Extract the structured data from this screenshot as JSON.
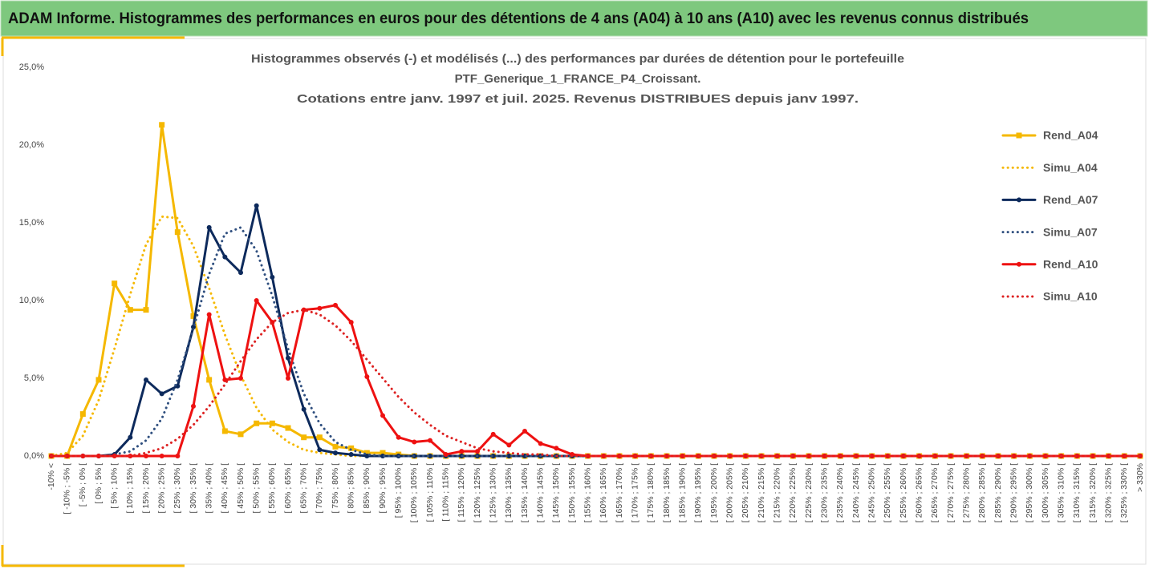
{
  "header": {
    "title": "ADAM Informe. Histogrammes des performances en euros pour des détentions de 4 ans (A04) à 10 ans (A10) avec les revenus connus distribués"
  },
  "chart_data": {
    "type": "line",
    "title": [
      "Histogrammes observés (-) et modélisés (...) des performances par durées de détention pour le portefeuille",
      "PTF_Generique_1_FRANCE_P4_Croissant.",
      "Cotations entre janv. 1997 et juil. 2025. Revenus DISTRIBUES depuis janv 1997."
    ],
    "categories": [
      "-10% <",
      "[ -10% ; -5% [",
      "[ -5% ; 0% [",
      "[ 0% ; 5% [",
      "[ 5% ; 10% [",
      "[ 10% ; 15% [",
      "[ 15% ; 20% [",
      "[ 20% ; 25% [",
      "[ 25% ; 30% [",
      "[ 30% ; 35% [",
      "[ 35% ; 40% [",
      "[ 40% ; 45% [",
      "[ 45% ; 50% [",
      "[ 50% ; 55% [",
      "[ 55% ; 60% [",
      "[ 60% ; 65% [",
      "[ 65% ; 70% [",
      "[ 70% ; 75% [",
      "[ 75% ; 80% [",
      "[ 80% ; 85% [",
      "[ 85% ; 90% [",
      "[ 90% ; 95% [",
      "[ 95% ; 100% [",
      "[ 100% ; 105% [",
      "[ 105% ; 110% [",
      "[ 110% ; 115% [",
      "[ 115% ; 120% [",
      "[ 120% ; 125% [",
      "[ 125% ; 130% [",
      "[ 130% ; 135% [",
      "[ 135% ; 140% [",
      "[ 140% ; 145% [",
      "[ 145% ; 150% [",
      "[ 150% ; 155% [",
      "[ 155% ; 160% [",
      "[ 160% ; 165% [",
      "[ 165% ; 170% [",
      "[ 170% ; 175% [",
      "[ 175% ; 180% [",
      "[ 180% ; 185% [",
      "[ 185% ; 190% [",
      "[ 190% ; 195% [",
      "[ 195% ; 200% [",
      "[ 200% ; 205% [",
      "[ 205% ; 210% [",
      "[ 210% ; 215% [",
      "[ 215% ; 220% [",
      "[ 220% ; 225% [",
      "[ 225% ; 230% [",
      "[ 230% ; 235% [",
      "[ 235% ; 240% [",
      "[ 240% ; 245% [",
      "[ 245% ; 250% [",
      "[ 250% ; 255% [",
      "[ 255% ; 260% [",
      "[ 260% ; 265% [",
      "[ 265% ; 270% [",
      "[ 270% ; 275% [",
      "[ 275% ; 280% [",
      "[ 280% ; 285% [",
      "[ 285% ; 290% [",
      "[ 290% ; 295% [",
      "[ 295% ; 300% [",
      "[ 300% ; 305% [",
      "[ 305% ; 310% [",
      "[ 310% ; 315% [",
      "[ 315% ; 320% [",
      "[ 320% ; 325% [",
      "[ 325% ; 330% [",
      "> 330%"
    ],
    "series": [
      {
        "name": "Rend_A04",
        "color": "#f5b800",
        "style": "solid",
        "marker": "square",
        "values": [
          0,
          0,
          2.7,
          4.9,
          11.1,
          9.4,
          9.4,
          21.3,
          14.4,
          9.0,
          4.9,
          1.6,
          1.4,
          2.1,
          2.1,
          1.8,
          1.2,
          1.2,
          0.6,
          0.5,
          0.2,
          0.2,
          0.1,
          0,
          0,
          0,
          0,
          0,
          0,
          0,
          0,
          0,
          0,
          0,
          0,
          0,
          0,
          0,
          0,
          0,
          0,
          0,
          0,
          0,
          0,
          0,
          0,
          0,
          0,
          0,
          0,
          0,
          0,
          0,
          0,
          0,
          0,
          0,
          0,
          0,
          0,
          0,
          0,
          0,
          0,
          0,
          0,
          0,
          0,
          0
        ]
      },
      {
        "name": "Simu_A04",
        "color": "#f5b800",
        "style": "dotted",
        "values": [
          0,
          0.2,
          1.3,
          3.6,
          6.9,
          10.4,
          13.6,
          15.4,
          15.3,
          13.5,
          10.8,
          7.8,
          5.2,
          3.1,
          1.7,
          0.9,
          0.4,
          0.2,
          0.1,
          0,
          0,
          0,
          0,
          0,
          0,
          0,
          0,
          0,
          0,
          0,
          0,
          0,
          0,
          0,
          0,
          0,
          0,
          0,
          0,
          0,
          0,
          0,
          0,
          0,
          0,
          0,
          0,
          0,
          0,
          0,
          0,
          0,
          0,
          0,
          0,
          0,
          0,
          0,
          0,
          0,
          0,
          0,
          0,
          0,
          0,
          0,
          0,
          0,
          0,
          0
        ]
      },
      {
        "name": "Rend_A07",
        "color": "#0d2a5c",
        "style": "solid",
        "marker": "circle",
        "values": [
          0,
          0,
          0,
          0,
          0.1,
          1.2,
          4.9,
          4.0,
          4.5,
          8.3,
          14.7,
          12.8,
          11.8,
          16.1,
          11.5,
          6.3,
          3.0,
          0.4,
          0.2,
          0.1,
          0,
          0,
          0,
          0,
          0,
          0,
          0,
          0,
          0,
          0,
          0,
          0,
          0,
          0,
          0,
          0,
          0,
          0,
          0,
          0,
          0,
          0,
          0,
          0,
          0,
          0,
          0,
          0,
          0,
          0,
          0,
          0,
          0,
          0,
          0,
          0,
          0,
          0,
          0,
          0,
          0,
          0,
          0,
          0,
          0,
          0,
          0,
          0,
          0,
          0
        ]
      },
      {
        "name": "Simu_A07",
        "color": "#2f4f7f",
        "style": "dotted",
        "values": [
          0,
          0,
          0,
          0,
          0.1,
          0.3,
          1.0,
          2.4,
          4.9,
          8.2,
          11.7,
          14.3,
          14.7,
          13.2,
          10.3,
          6.9,
          4.0,
          2.1,
          0.9,
          0.4,
          0.1,
          0,
          0,
          0,
          0,
          0,
          0,
          0,
          0,
          0,
          0,
          0,
          0,
          0,
          0,
          0,
          0,
          0,
          0,
          0,
          0,
          0,
          0,
          0,
          0,
          0,
          0,
          0,
          0,
          0,
          0,
          0,
          0,
          0,
          0,
          0,
          0,
          0,
          0,
          0,
          0,
          0,
          0,
          0,
          0,
          0,
          0,
          0,
          0,
          0
        ]
      },
      {
        "name": "Rend_A10",
        "color": "#ee1111",
        "style": "solid",
        "marker": "circle",
        "values": [
          0,
          0,
          0,
          0,
          0,
          0,
          0,
          0,
          0,
          3.2,
          9.1,
          4.9,
          5.0,
          10.0,
          8.6,
          5.0,
          9.4,
          9.5,
          9.7,
          8.6,
          5.1,
          2.6,
          1.2,
          0.9,
          1.0,
          0.1,
          0.3,
          0.3,
          1.4,
          0.7,
          1.6,
          0.8,
          0.5,
          0.1,
          0,
          0,
          0,
          0,
          0,
          0,
          0,
          0,
          0,
          0,
          0,
          0,
          0,
          0,
          0,
          0,
          0,
          0,
          0,
          0,
          0,
          0,
          0,
          0,
          0,
          0,
          0,
          0,
          0,
          0,
          0,
          0,
          0,
          0,
          0,
          0
        ]
      },
      {
        "name": "Simu_A10",
        "color": "#dd2222",
        "style": "dotted",
        "values": [
          0,
          0,
          0,
          0,
          0,
          0,
          0.2,
          0.5,
          1.1,
          2.0,
          3.2,
          4.6,
          6.1,
          7.5,
          8.6,
          9.2,
          9.4,
          9.1,
          8.4,
          7.4,
          6.2,
          5.0,
          3.8,
          2.8,
          2.0,
          1.3,
          0.9,
          0.5,
          0.3,
          0.2,
          0.1,
          0.1,
          0,
          0,
          0,
          0,
          0,
          0,
          0,
          0,
          0,
          0,
          0,
          0,
          0,
          0,
          0,
          0,
          0,
          0,
          0,
          0,
          0,
          0,
          0,
          0,
          0,
          0,
          0,
          0,
          0,
          0,
          0,
          0,
          0,
          0,
          0,
          0,
          0,
          0
        ]
      }
    ],
    "ylim": [
      0,
      25
    ],
    "yticks": [
      {
        "value": 0,
        "label": "0,0%"
      },
      {
        "value": 5,
        "label": "5,0%"
      },
      {
        "value": 10,
        "label": "10,0%"
      },
      {
        "value": 15,
        "label": "15,0%"
      },
      {
        "value": 20,
        "label": "20,0%"
      },
      {
        "value": 25,
        "label": "25,0%"
      }
    ],
    "grid": false,
    "legend": "right"
  }
}
